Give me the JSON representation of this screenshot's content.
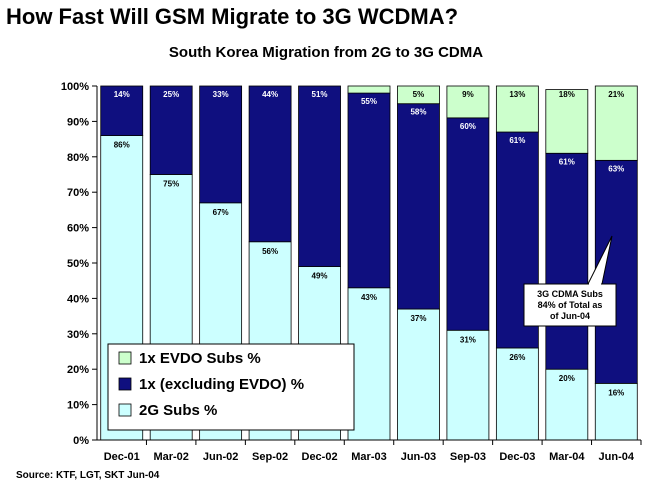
{
  "header": {
    "title": "How Fast Will GSM Migrate to 3G WCDMA?",
    "source": "Source: KTF, LGT, SKT Jun-04"
  },
  "colors": {
    "evdo": "#ccffcc",
    "one_x": "#0f0f7f",
    "two_g": "#ccffff",
    "background": "#ffffff"
  },
  "callout": {
    "lines": [
      "3G CDMA Subs",
      "84% of Total as",
      "of Jun-04"
    ]
  },
  "chart_data": {
    "type": "bar",
    "stacked": true,
    "title": "South Korea Migration from 2G to 3G CDMA",
    "categories": [
      "Dec-01",
      "Mar-02",
      "Jun-02",
      "Sep-02",
      "Dec-02",
      "Mar-03",
      "Jun-03",
      "Sep-03",
      "Dec-03",
      "Mar-04",
      "Jun-04"
    ],
    "series": [
      {
        "name": "2G Subs %",
        "values": [
          86,
          75,
          67,
          56,
          49,
          43,
          37,
          31,
          26,
          20,
          16
        ],
        "labels": [
          "86%",
          "75%",
          "67%",
          "56%",
          "49%",
          "43%",
          "37%",
          "31%",
          "26%",
          "20%",
          "16%"
        ]
      },
      {
        "name": "1x (excluding EVDO) %",
        "values": [
          14,
          25,
          33,
          44,
          51,
          55,
          58,
          60,
          61,
          61,
          63
        ],
        "labels": [
          "14%",
          "25%",
          "33%",
          "44%",
          "51%",
          "55%",
          "58%",
          "60%",
          "61%",
          "61%",
          "63%"
        ]
      },
      {
        "name": "1x EVDO Subs %",
        "values": [
          0,
          0,
          0,
          0,
          0,
          2,
          5,
          9,
          13,
          18,
          21
        ],
        "labels": [
          "",
          "",
          "",
          "",
          "",
          "",
          "5%",
          "9%",
          "13%",
          "18%",
          "21%"
        ]
      }
    ],
    "ylim": [
      0,
      100
    ],
    "yticks": [
      "0%",
      "10%",
      "20%",
      "30%",
      "40%",
      "50%",
      "60%",
      "70%",
      "80%",
      "90%",
      "100%"
    ],
    "legend": {
      "placement": "bottom-left",
      "entries": [
        "1x EVDO Subs %",
        "1x (excluding EVDO) %",
        "2G Subs %"
      ]
    },
    "grid": false
  }
}
